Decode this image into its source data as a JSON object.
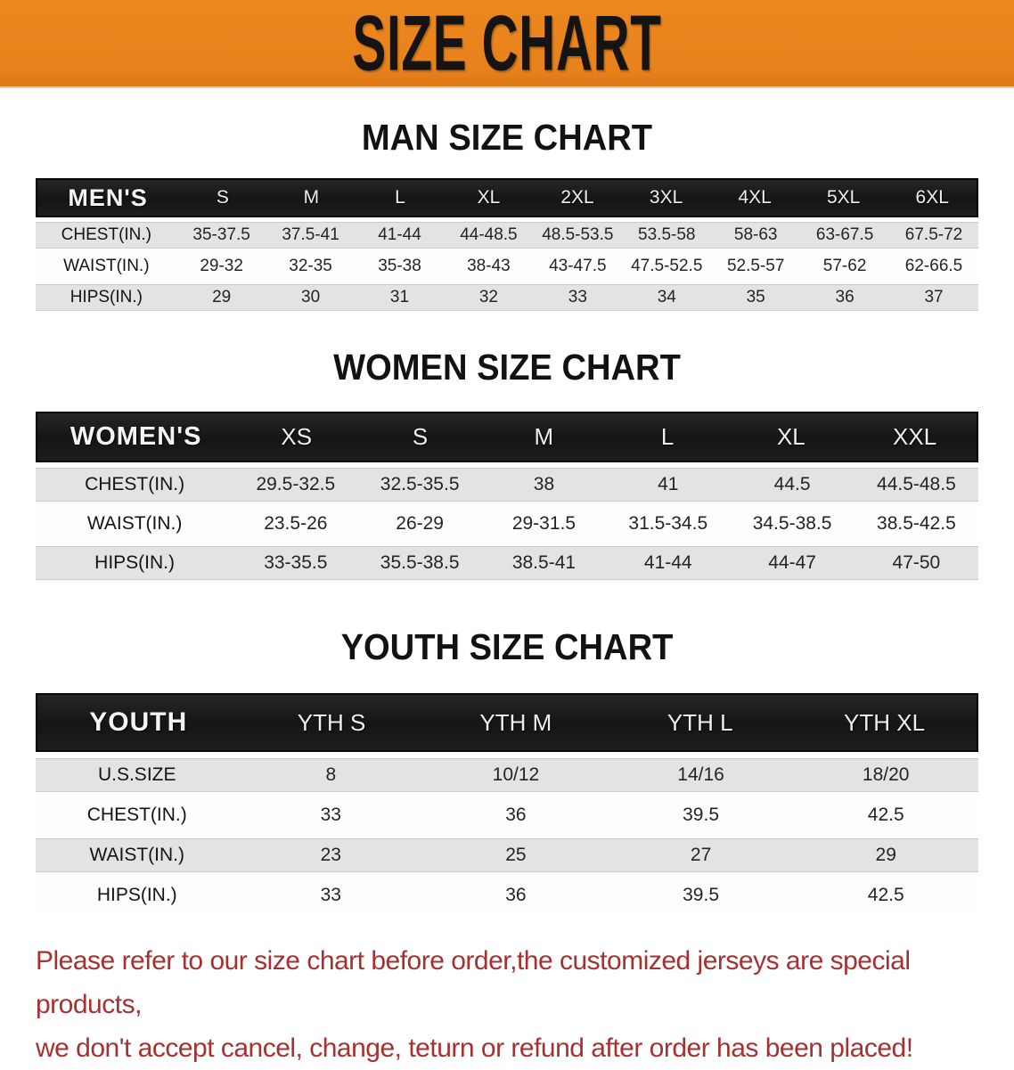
{
  "banner": {
    "title": "SIZE CHART",
    "bg_color": "#E8821C",
    "text_color": "#161412"
  },
  "tables": [
    {
      "id": "men",
      "title": "MAN SIZE CHART",
      "header_label": "MEN'S",
      "sizes": [
        "S",
        "M",
        "L",
        "XL",
        "2XL",
        "3XL",
        "4XL",
        "5XL",
        "6XL"
      ],
      "rows": [
        {
          "label": "CHEST(IN.)",
          "values": [
            "35-37.5",
            "37.5-41",
            "41-44",
            "44-48.5",
            "48.5-53.5",
            "53.5-58",
            "58-63",
            "63-67.5",
            "67.5-72"
          ]
        },
        {
          "label": "WAIST(IN.)",
          "values": [
            "29-32",
            "32-35",
            "35-38",
            "38-43",
            "43-47.5",
            "47.5-52.5",
            "52.5-57",
            "57-62",
            "62-66.5"
          ]
        },
        {
          "label": "HIPS(IN.)",
          "values": [
            "29",
            "30",
            "31",
            "32",
            "33",
            "34",
            "35",
            "36",
            "37"
          ]
        }
      ]
    },
    {
      "id": "women",
      "title": "WOMEN SIZE CHART",
      "header_label": "WOMEN'S",
      "sizes": [
        "XS",
        "S",
        "M",
        "L",
        "XL",
        "XXL"
      ],
      "rows": [
        {
          "label": "CHEST(IN.)",
          "values": [
            "29.5-32.5",
            "32.5-35.5",
            "38",
            "41",
            "44.5",
            "44.5-48.5"
          ]
        },
        {
          "label": "WAIST(IN.)",
          "values": [
            "23.5-26",
            "26-29",
            "29-31.5",
            "31.5-34.5",
            "34.5-38.5",
            "38.5-42.5"
          ]
        },
        {
          "label": "HIPS(IN.)",
          "values": [
            "33-35.5",
            "35.5-38.5",
            "38.5-41",
            "41-44",
            "44-47",
            "47-50"
          ]
        }
      ]
    },
    {
      "id": "youth",
      "title": "YOUTH SIZE CHART",
      "header_label": "YOUTH",
      "sizes": [
        "YTH S",
        "YTH M",
        "YTH L",
        "YTH XL"
      ],
      "rows": [
        {
          "label": "U.S.SIZE",
          "values": [
            "8",
            "10/12",
            "14/16",
            "18/20"
          ]
        },
        {
          "label": "CHEST(IN.)",
          "values": [
            "33",
            "36",
            "39.5",
            "42.5"
          ]
        },
        {
          "label": "WAIST(IN.)",
          "values": [
            "23",
            "25",
            "27",
            "29"
          ]
        },
        {
          "label": "HIPS(IN.)",
          "values": [
            "33",
            "36",
            "39.5",
            "42.5"
          ]
        }
      ]
    }
  ],
  "disclaimer": {
    "line1": "Please refer to our size chart before order,the customized jerseys are special products,",
    "line2": "we don't accept cancel, change, teturn or refund after order has been placed!",
    "color": "#A63131"
  }
}
